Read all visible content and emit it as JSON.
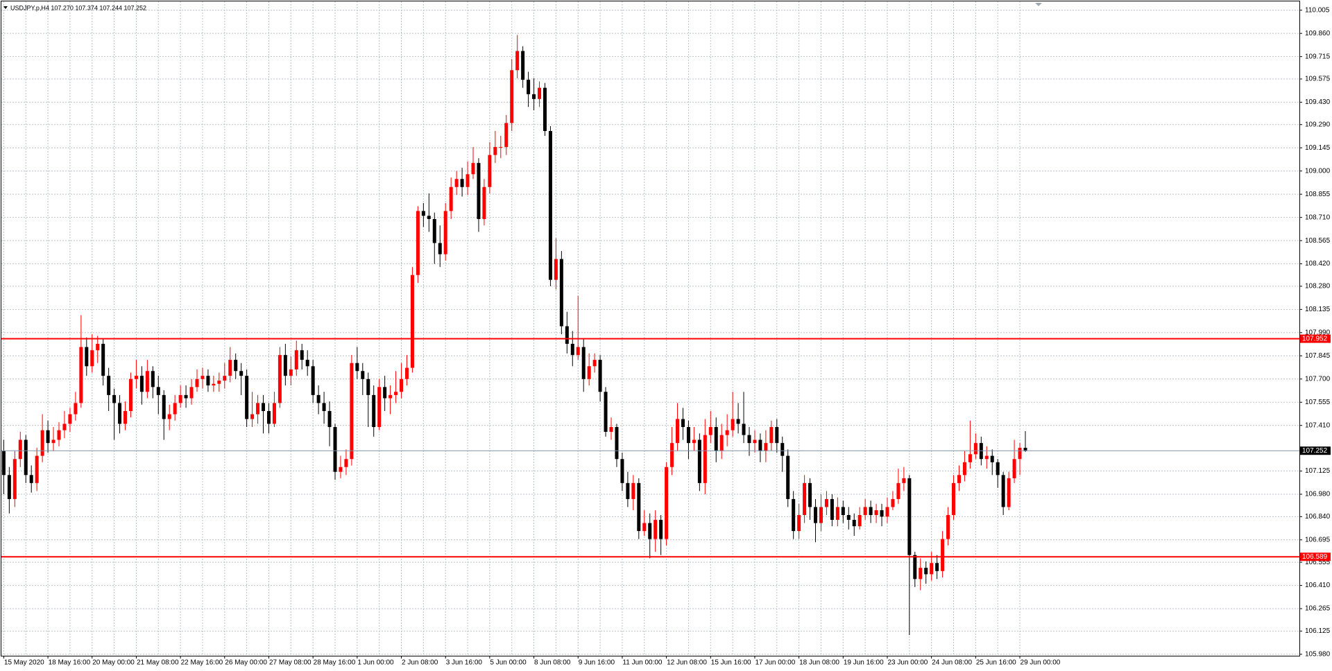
{
  "chart_data": {
    "type": "candlestick",
    "title": "USDJPY.p,H4  107.270 107.374 107.244 107.252",
    "categories": [
      "15 May 2020",
      null,
      null,
      null,
      null,
      null,
      null,
      null,
      "18 May 16:00",
      null,
      null,
      null,
      null,
      null,
      null,
      null,
      "20 May 00:00",
      null,
      null,
      null,
      null,
      null,
      null,
      null,
      "21 May 08:00",
      null,
      null,
      null,
      null,
      null,
      null,
      null,
      "22 May 16:00",
      null,
      null,
      null,
      null,
      null,
      null,
      null,
      "26 May 00:00",
      null,
      null,
      null,
      null,
      null,
      null,
      null,
      "27 May 08:00",
      null,
      null,
      null,
      null,
      null,
      null,
      null,
      "28 May 16:00",
      null,
      null,
      null,
      null,
      null,
      null,
      null,
      "1 Jun 00:00",
      null,
      null,
      null,
      null,
      null,
      null,
      null,
      "2 Jun 08:00",
      null,
      null,
      null,
      null,
      null,
      null,
      null,
      "3 Jun 16:00",
      null,
      null,
      null,
      null,
      null,
      null,
      null,
      "5 Jun 00:00",
      null,
      null,
      null,
      null,
      null,
      null,
      null,
      "8 Jun 08:00",
      null,
      null,
      null,
      null,
      null,
      null,
      null,
      "9 Jun 16:00",
      null,
      null,
      null,
      null,
      null,
      null,
      null,
      "11 Jun 00:00",
      null,
      null,
      null,
      null,
      null,
      null,
      null,
      "12 Jun 08:00",
      null,
      null,
      null,
      null,
      null,
      null,
      null,
      "15 Jun 16:00",
      null,
      null,
      null,
      null,
      null,
      null,
      null,
      "17 Jun 00:00",
      null,
      null,
      null,
      null,
      null,
      null,
      null,
      "18 Jun 08:00",
      null,
      null,
      null,
      null,
      null,
      null,
      null,
      "19 Jun 16:00",
      null,
      null,
      null,
      null,
      null,
      null,
      null,
      "23 Jun 00:00",
      null,
      null,
      null,
      null,
      null,
      null,
      null,
      "24 Jun 08:00",
      null,
      null,
      null,
      null,
      null,
      null,
      null,
      "25 Jun 16:00",
      null,
      null,
      null,
      null,
      null,
      null,
      null,
      "29 Jun 00:00",
      null
    ],
    "ohlc": [
      [
        107.25,
        107.32,
        106.98,
        107.1
      ],
      [
        107.1,
        107.15,
        106.86,
        106.95
      ],
      [
        106.95,
        107.25,
        106.9,
        107.2
      ],
      [
        107.2,
        107.37,
        107.15,
        107.32
      ],
      [
        107.32,
        107.35,
        107.05,
        107.1
      ],
      [
        107.1,
        107.16,
        106.99,
        107.05
      ],
      [
        107.05,
        107.27,
        107.0,
        107.22
      ],
      [
        107.22,
        107.48,
        107.18,
        107.38
      ],
      [
        107.38,
        107.44,
        107.24,
        107.3
      ],
      [
        107.3,
        107.4,
        107.25,
        107.32
      ],
      [
        107.32,
        107.43,
        107.28,
        107.38
      ],
      [
        107.38,
        107.5,
        107.33,
        107.42
      ],
      [
        107.42,
        107.52,
        107.37,
        107.48
      ],
      [
        107.48,
        107.62,
        107.44,
        107.55
      ],
      [
        107.55,
        108.1,
        107.52,
        107.9
      ],
      [
        107.9,
        107.96,
        107.72,
        107.78
      ],
      [
        107.78,
        107.98,
        107.74,
        107.88
      ],
      [
        107.88,
        107.97,
        107.8,
        107.92
      ],
      [
        107.92,
        107.95,
        107.66,
        107.72
      ],
      [
        107.72,
        107.77,
        107.5,
        107.6
      ],
      [
        107.6,
        107.64,
        107.32,
        107.55
      ],
      [
        107.55,
        107.6,
        107.36,
        107.42
      ],
      [
        107.42,
        107.56,
        107.38,
        107.5
      ],
      [
        107.5,
        107.74,
        107.46,
        107.7
      ],
      [
        107.7,
        107.82,
        107.64,
        107.72
      ],
      [
        107.72,
        107.78,
        107.54,
        107.62
      ],
      [
        107.62,
        107.82,
        107.58,
        107.75
      ],
      [
        107.75,
        107.78,
        107.58,
        107.65
      ],
      [
        107.65,
        107.72,
        107.48,
        107.6
      ],
      [
        107.6,
        107.63,
        107.32,
        107.45
      ],
      [
        107.45,
        107.54,
        107.38,
        107.48
      ],
      [
        107.48,
        107.6,
        107.44,
        107.55
      ],
      [
        107.55,
        107.66,
        107.52,
        107.6
      ],
      [
        107.6,
        107.66,
        107.52,
        107.58
      ],
      [
        107.58,
        107.7,
        107.54,
        107.65
      ],
      [
        107.65,
        107.76,
        107.62,
        107.7
      ],
      [
        107.7,
        107.77,
        107.64,
        107.72
      ],
      [
        107.72,
        107.76,
        107.62,
        107.66
      ],
      [
        107.66,
        107.72,
        107.62,
        107.67
      ],
      [
        107.67,
        107.74,
        107.62,
        107.69
      ],
      [
        107.69,
        107.8,
        107.64,
        107.72
      ],
      [
        107.72,
        107.9,
        107.68,
        107.82
      ],
      [
        107.82,
        107.86,
        107.7,
        107.75
      ],
      [
        107.75,
        107.8,
        107.6,
        107.72
      ],
      [
        107.72,
        107.76,
        107.4,
        107.45
      ],
      [
        107.45,
        107.62,
        107.4,
        107.48
      ],
      [
        107.48,
        107.6,
        107.42,
        107.55
      ],
      [
        107.55,
        107.6,
        107.36,
        107.5
      ],
      [
        107.5,
        107.55,
        107.36,
        107.42
      ],
      [
        107.42,
        107.62,
        107.4,
        107.55
      ],
      [
        107.55,
        107.9,
        107.52,
        107.85
      ],
      [
        107.85,
        107.92,
        107.66,
        107.72
      ],
      [
        107.72,
        107.84,
        107.66,
        107.76
      ],
      [
        107.76,
        107.94,
        107.72,
        107.88
      ],
      [
        107.88,
        107.92,
        107.76,
        107.82
      ],
      [
        107.82,
        107.88,
        107.72,
        107.78
      ],
      [
        107.78,
        107.82,
        107.55,
        107.6
      ],
      [
        107.6,
        107.66,
        107.48,
        107.55
      ],
      [
        107.55,
        107.62,
        107.42,
        107.5
      ],
      [
        107.5,
        107.56,
        107.28,
        107.4
      ],
      [
        107.4,
        107.42,
        107.07,
        107.12
      ],
      [
        107.12,
        107.22,
        107.08,
        107.15
      ],
      [
        107.15,
        107.26,
        107.1,
        107.2
      ],
      [
        107.2,
        107.85,
        107.16,
        107.8
      ],
      [
        107.8,
        107.9,
        107.7,
        107.75
      ],
      [
        107.75,
        107.8,
        107.6,
        107.7
      ],
      [
        107.7,
        107.74,
        107.4,
        107.6
      ],
      [
        107.6,
        107.66,
        107.34,
        107.4
      ],
      [
        107.4,
        107.7,
        107.38,
        107.65
      ],
      [
        107.65,
        107.72,
        107.5,
        107.58
      ],
      [
        107.58,
        107.66,
        107.48,
        107.6
      ],
      [
        107.6,
        107.75,
        107.55,
        107.62
      ],
      [
        107.62,
        107.8,
        107.58,
        107.7
      ],
      [
        107.7,
        107.85,
        107.66,
        107.77
      ],
      [
        107.77,
        108.4,
        107.74,
        108.35
      ],
      [
        108.35,
        108.78,
        108.3,
        108.75
      ],
      [
        108.75,
        108.8,
        108.65,
        108.72
      ],
      [
        108.72,
        108.86,
        108.62,
        108.7
      ],
      [
        108.7,
        108.74,
        108.42,
        108.55
      ],
      [
        108.55,
        108.66,
        108.4,
        108.48
      ],
      [
        108.48,
        108.8,
        108.44,
        108.75
      ],
      [
        108.75,
        108.96,
        108.7,
        108.9
      ],
      [
        108.9,
        109.0,
        108.85,
        108.95
      ],
      [
        108.95,
        109.02,
        108.84,
        108.9
      ],
      [
        108.9,
        109.06,
        108.85,
        108.98
      ],
      [
        108.98,
        109.15,
        108.95,
        109.05
      ],
      [
        109.05,
        109.08,
        108.62,
        108.7
      ],
      [
        108.7,
        108.95,
        108.66,
        108.9
      ],
      [
        108.9,
        109.18,
        108.86,
        109.1
      ],
      [
        109.1,
        109.25,
        109.05,
        109.15
      ],
      [
        109.15,
        109.22,
        109.08,
        109.15
      ],
      [
        109.15,
        109.35,
        109.1,
        109.3
      ],
      [
        109.3,
        109.7,
        109.25,
        109.63
      ],
      [
        109.63,
        109.85,
        109.58,
        109.75
      ],
      [
        109.75,
        109.78,
        109.52,
        109.57
      ],
      [
        109.57,
        109.62,
        109.4,
        109.48
      ],
      [
        109.48,
        109.58,
        109.38,
        109.45
      ],
      [
        109.45,
        109.56,
        109.4,
        109.52
      ],
      [
        109.52,
        109.55,
        109.22,
        109.25
      ],
      [
        109.25,
        109.28,
        108.28,
        108.32
      ],
      [
        108.32,
        108.58,
        108.26,
        108.45
      ],
      [
        108.45,
        108.5,
        107.98,
        108.03
      ],
      [
        108.03,
        108.12,
        107.86,
        107.92
      ],
      [
        107.92,
        108.0,
        107.78,
        107.85
      ],
      [
        107.85,
        108.22,
        107.82,
        107.9
      ],
      [
        107.9,
        107.95,
        107.62,
        107.7
      ],
      [
        107.7,
        107.86,
        107.66,
        107.78
      ],
      [
        107.78,
        107.86,
        107.74,
        107.82
      ],
      [
        107.82,
        107.85,
        107.56,
        107.62
      ],
      [
        107.62,
        107.65,
        107.34,
        107.37
      ],
      [
        107.37,
        107.46,
        107.32,
        107.4
      ],
      [
        107.4,
        107.42,
        107.15,
        107.2
      ],
      [
        107.2,
        107.24,
        107.0,
        107.05
      ],
      [
        107.05,
        107.12,
        106.9,
        106.95
      ],
      [
        106.95,
        107.1,
        106.88,
        107.05
      ],
      [
        107.05,
        107.08,
        106.7,
        106.75
      ],
      [
        106.75,
        106.88,
        106.72,
        106.8
      ],
      [
        106.8,
        106.86,
        106.58,
        106.7
      ],
      [
        106.7,
        106.88,
        106.62,
        106.82
      ],
      [
        106.82,
        106.85,
        106.6,
        106.7
      ],
      [
        106.7,
        107.18,
        106.66,
        107.15
      ],
      [
        107.15,
        107.4,
        107.1,
        107.3
      ],
      [
        107.3,
        107.55,
        107.25,
        107.45
      ],
      [
        107.45,
        107.52,
        107.32,
        107.4
      ],
      [
        107.4,
        107.44,
        107.2,
        107.3
      ],
      [
        107.3,
        107.4,
        107.25,
        107.32
      ],
      [
        107.32,
        107.36,
        107.0,
        107.05
      ],
      [
        107.05,
        107.45,
        106.98,
        107.35
      ],
      [
        107.35,
        107.5,
        107.3,
        107.4
      ],
      [
        107.4,
        107.46,
        107.18,
        107.25
      ],
      [
        107.25,
        107.42,
        107.2,
        107.35
      ],
      [
        107.35,
        107.48,
        107.28,
        107.38
      ],
      [
        107.38,
        107.62,
        107.34,
        107.45
      ],
      [
        107.45,
        107.55,
        107.36,
        107.42
      ],
      [
        107.42,
        107.62,
        107.3,
        107.35
      ],
      [
        107.35,
        107.4,
        107.22,
        107.3
      ],
      [
        107.3,
        107.38,
        107.24,
        107.32
      ],
      [
        107.32,
        107.36,
        107.18,
        107.25
      ],
      [
        107.25,
        107.38,
        107.18,
        107.3
      ],
      [
        107.3,
        107.44,
        107.25,
        107.4
      ],
      [
        107.4,
        107.45,
        107.24,
        107.3
      ],
      [
        107.3,
        107.34,
        107.12,
        107.22
      ],
      [
        107.22,
        107.26,
        106.9,
        106.95
      ],
      [
        106.95,
        107.0,
        106.7,
        106.75
      ],
      [
        106.75,
        106.92,
        106.7,
        106.85
      ],
      [
        106.85,
        107.1,
        106.8,
        107.05
      ],
      [
        107.05,
        107.08,
        106.82,
        106.9
      ],
      [
        106.9,
        106.95,
        106.68,
        106.8
      ],
      [
        106.8,
        106.98,
        106.75,
        106.9
      ],
      [
        106.9,
        107.0,
        106.85,
        106.95
      ],
      [
        106.95,
        106.98,
        106.78,
        106.82
      ],
      [
        106.82,
        106.96,
        106.78,
        106.9
      ],
      [
        106.9,
        106.94,
        106.8,
        106.85
      ],
      [
        106.85,
        106.9,
        106.76,
        106.82
      ],
      [
        106.82,
        106.86,
        106.72,
        106.78
      ],
      [
        106.78,
        106.9,
        106.76,
        106.85
      ],
      [
        106.85,
        106.95,
        106.82,
        106.9
      ],
      [
        106.9,
        106.94,
        106.8,
        106.85
      ],
      [
        106.85,
        106.92,
        106.8,
        106.88
      ],
      [
        106.88,
        106.92,
        106.78,
        106.84
      ],
      [
        106.84,
        106.96,
        106.8,
        106.9
      ],
      [
        106.9,
        107.0,
        106.88,
        106.95
      ],
      [
        106.95,
        107.14,
        106.92,
        107.05
      ],
      [
        107.05,
        107.15,
        107.0,
        107.08
      ],
      [
        107.08,
        107.1,
        106.1,
        106.6
      ],
      [
        106.6,
        106.62,
        106.4,
        106.45
      ],
      [
        106.45,
        106.58,
        106.38,
        106.52
      ],
      [
        106.52,
        106.56,
        106.42,
        106.48
      ],
      [
        106.48,
        106.62,
        106.44,
        106.55
      ],
      [
        106.55,
        106.6,
        106.45,
        106.5
      ],
      [
        106.5,
        106.75,
        106.46,
        106.7
      ],
      [
        106.7,
        106.9,
        106.66,
        106.85
      ],
      [
        106.85,
        107.1,
        106.82,
        107.05
      ],
      [
        107.05,
        107.16,
        107.0,
        107.1
      ],
      [
        107.1,
        107.25,
        107.06,
        107.18
      ],
      [
        107.18,
        107.44,
        107.14,
        107.23
      ],
      [
        107.23,
        107.36,
        107.2,
        107.3
      ],
      [
        107.3,
        107.34,
        107.16,
        107.2
      ],
      [
        107.2,
        107.28,
        107.14,
        107.22
      ],
      [
        107.22,
        107.26,
        107.1,
        107.18
      ],
      [
        107.18,
        107.2,
        107.02,
        107.1
      ],
      [
        107.1,
        107.12,
        106.85,
        106.9
      ],
      [
        106.9,
        107.12,
        106.88,
        107.08
      ],
      [
        107.08,
        107.32,
        107.05,
        107.2
      ],
      [
        107.2,
        107.3,
        107.1,
        107.27
      ],
      [
        107.27,
        107.374,
        107.244,
        107.252
      ]
    ],
    "up_color": "#ff0000",
    "down_color": "#000000",
    "ylim": [
      105.975,
      110.047
    ],
    "yticks": [
      110.005,
      {
        "value": 109.86,
        "label": "109.860"
      },
      109.715,
      109.575,
      {
        "value": 109.43,
        "label": "109.430"
      },
      {
        "value": 109.29,
        "label": "109.290"
      },
      109.145,
      {
        "value": 109,
        "label": "109.000"
      },
      108.855,
      {
        "value": 108.71,
        "label": "108.710"
      },
      108.565,
      {
        "value": 108.42,
        "label": "108.420"
      },
      {
        "value": 108.28,
        "label": "108.280"
      },
      108.135,
      {
        "value": 107.99,
        "label": "107.990"
      },
      107.845,
      {
        "value": 107.7,
        "label": "107.700"
      },
      107.555,
      {
        "value": 107.41,
        "label": "107.410"
      },
      107.125,
      {
        "value": 106.98,
        "label": "106.980"
      },
      {
        "value": 106.84,
        "label": "106.840"
      },
      106.695,
      106.555,
      {
        "value": 106.41,
        "label": "106.410"
      },
      106.265,
      106.125,
      {
        "value": 105.98,
        "label": "105.980"
      }
    ],
    "grid": true,
    "hlines": [
      {
        "value": 107.952,
        "color": "#ff0000"
      },
      {
        "value": 106.589,
        "color": "#ff0000"
      }
    ],
    "current_price": 107.252
  }
}
